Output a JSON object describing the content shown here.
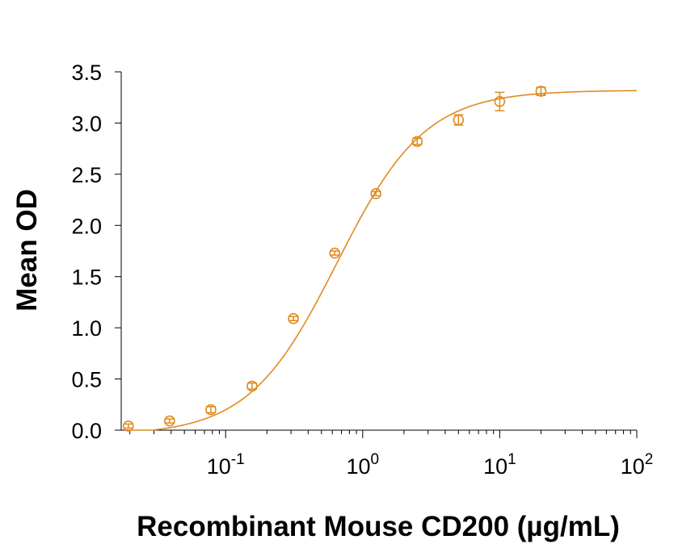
{
  "chart_data": {
    "type": "scatter",
    "xlabel": "Recombinant Mouse CD200 (µg/mL)",
    "ylabel": "Mean OD",
    "x_scale": "log",
    "xlim": [
      0.0173,
      100
    ],
    "ylim": [
      0,
      3.5
    ],
    "x_ticks": [
      {
        "base": "10",
        "exp": "-1",
        "value": 0.1
      },
      {
        "base": "10",
        "exp": "0",
        "value": 1
      },
      {
        "base": "10",
        "exp": "1",
        "value": 10
      },
      {
        "base": "10",
        "exp": "2",
        "value": 100
      }
    ],
    "y_ticks": [
      "0.0",
      "0.5",
      "1.0",
      "1.5",
      "2.0",
      "2.5",
      "3.0",
      "3.5"
    ],
    "grid": false,
    "color": "#E08A1E",
    "series": [
      {
        "x": [
          0.0195,
          0.039,
          0.078,
          0.156,
          0.3125,
          0.625,
          1.25,
          2.5,
          5,
          10,
          20
        ],
        "y": [
          0.04,
          0.09,
          0.2,
          0.43,
          1.09,
          1.73,
          2.31,
          2.82,
          3.03,
          3.21,
          3.31
        ],
        "error": [
          0.02,
          0.02,
          0.03,
          0.03,
          0.02,
          0.02,
          0.02,
          0.03,
          0.05,
          0.09,
          0.04
        ]
      }
    ],
    "fit": {
      "type": "4PL",
      "bottom": -0.05,
      "top": 3.32,
      "ec50": 0.65,
      "hill": 1.35
    }
  }
}
